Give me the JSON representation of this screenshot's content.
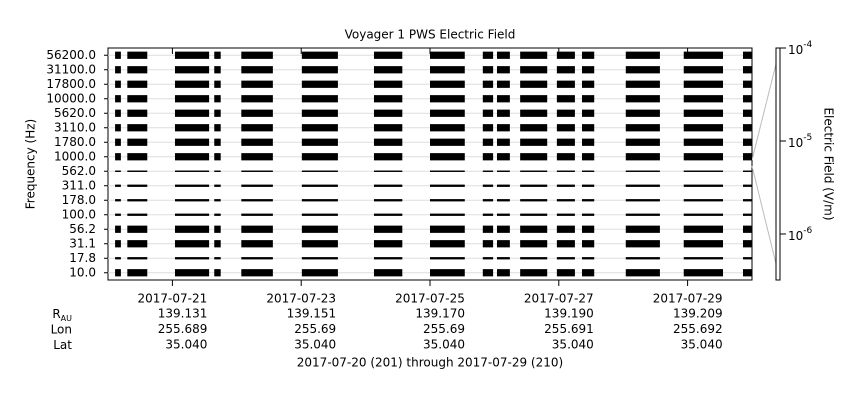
{
  "chart_data": {
    "type": "spectrogram",
    "title": "Voyager 1 PWS Electric Field",
    "y_label": "Frequency (Hz)",
    "colorbar_label": "Electric Field (V/m)",
    "footer": "2017-07-20 (201) through 2017-07-29 (210)",
    "xlim": [
      201,
      211
    ],
    "xticks": [
      {
        "value": 202,
        "label": "2017-07-21"
      },
      {
        "value": 204,
        "label": "2017-07-23"
      },
      {
        "value": 206,
        "label": "2017-07-25"
      },
      {
        "value": 208,
        "label": "2017-07-27"
      },
      {
        "value": 210,
        "label": "2017-07-29"
      }
    ],
    "channels": [
      {
        "label": "10.0",
        "value": 0.0001
      },
      {
        "label": "17.8",
        "value": 2e-06
      },
      {
        "label": "31.1",
        "value": 0.0001
      },
      {
        "label": "56.2",
        "value": 0.0001
      },
      {
        "label": "100.0",
        "value": 2e-06
      },
      {
        "label": "178.0",
        "value": 2e-06
      },
      {
        "label": "311.0",
        "value": 2e-06
      },
      {
        "label": "562.0",
        "value": 1e-06
      },
      {
        "label": "1000.0",
        "value": 0.0001
      },
      {
        "label": "1780.0",
        "value": 0.0001
      },
      {
        "label": "3110.0",
        "value": 0.0001
      },
      {
        "label": "5620.0",
        "value": 0.0001
      },
      {
        "label": "10000.0",
        "value": 0.0001
      },
      {
        "label": "17800.0",
        "value": 0.0001
      },
      {
        "label": "31100.0",
        "value": 0.0001
      },
      {
        "label": "56200.0",
        "value": 0.0001
      }
    ],
    "segments": [
      [
        201.11,
        201.2
      ],
      [
        201.3,
        201.61
      ],
      [
        202.04,
        202.57
      ],
      [
        202.65,
        202.75
      ],
      [
        203.07,
        203.56
      ],
      [
        204.01,
        204.57
      ],
      [
        205.13,
        205.57
      ],
      [
        206.0,
        206.54
      ],
      [
        206.82,
        206.98
      ],
      [
        207.04,
        207.24
      ],
      [
        207.4,
        207.82
      ],
      [
        207.97,
        208.25
      ],
      [
        208.36,
        208.55
      ],
      [
        209.04,
        209.57
      ],
      [
        209.94,
        210.55
      ],
      [
        210.86,
        211.0
      ]
    ],
    "color": "#000000",
    "clim": [
      3.2e-07,
      0.0001
    ],
    "log_scale": true,
    "cticks": [
      {
        "value": 0.0001,
        "label": "10-4"
      },
      {
        "value": 1e-05,
        "label": "10-5"
      },
      {
        "value": 1e-06,
        "label": "10-6"
      }
    ],
    "ephemeris": [
      {
        "label": "R",
        "sub": "AU",
        "values": [
          {
            "value": 139.131,
            "label": "139.131"
          },
          {
            "value": 139.151,
            "label": "139.151"
          },
          {
            "value": 139.17,
            "label": "139.170"
          },
          {
            "value": 139.19,
            "label": "139.190"
          },
          {
            "value": 139.209,
            "label": "139.209"
          }
        ]
      },
      {
        "label": "Lon",
        "values": [
          255.689,
          255.69,
          255.69,
          255.691,
          255.692
        ]
      },
      {
        "label": "Lat",
        "values": [
          {
            "value": 35.04,
            "label": "35.040"
          },
          {
            "value": 35.04,
            "label": "35.040"
          },
          {
            "value": 35.04,
            "label": "35.040"
          },
          {
            "value": 35.04,
            "label": "35.040"
          },
          {
            "value": 35.04,
            "label": "35.040"
          }
        ]
      }
    ]
  }
}
